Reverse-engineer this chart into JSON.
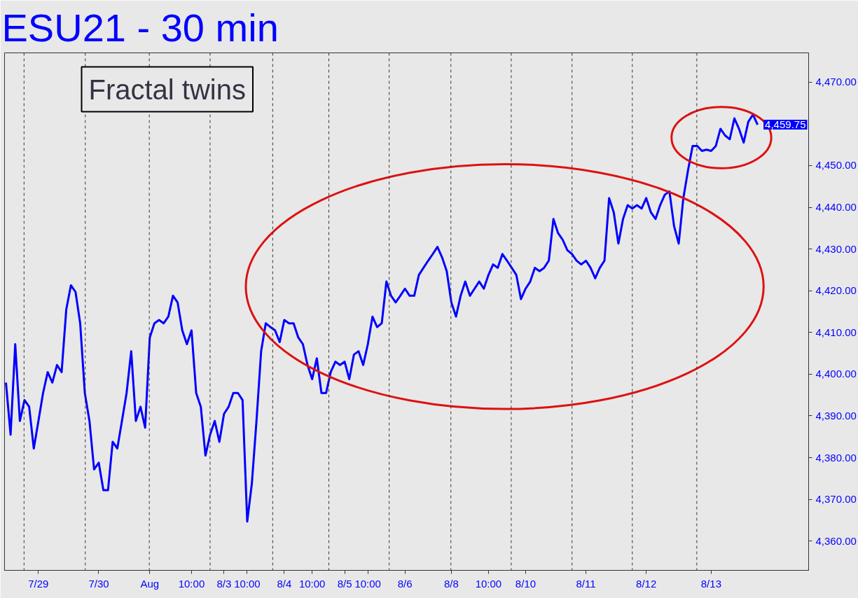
{
  "chart_data": {
    "type": "line",
    "title": "ESU21 - 30 min",
    "annotations": [
      "Fractal twins",
      "4,459.75"
    ],
    "categories": [
      null,
      null,
      null,
      null,
      null,
      null,
      null,
      "7/29",
      null,
      null,
      null,
      null,
      null,
      null,
      null,
      null,
      null,
      null,
      null,
      null,
      "7/30",
      null,
      null,
      null,
      null,
      null,
      null,
      null,
      null,
      null,
      null,
      "Aug",
      null,
      null,
      null,
      null,
      null,
      null,
      null,
      null,
      "10:00",
      null,
      null,
      null,
      null,
      null,
      null,
      "8/3",
      null,
      null,
      null,
      null,
      "10:00",
      null,
      null,
      null,
      null,
      null,
      null,
      null,
      "8/4",
      null,
      null,
      null,
      null,
      null,
      "10:00",
      null,
      null,
      null,
      null,
      null,
      null,
      "8/5",
      null,
      null,
      null,
      null,
      "10:00",
      null,
      null,
      null,
      null,
      null,
      null,
      null,
      "8/6",
      null,
      null,
      null,
      null,
      null,
      null,
      null,
      null,
      null,
      "8/8",
      null,
      null,
      null,
      null,
      null,
      null,
      null,
      "10:00",
      null,
      null,
      null,
      null,
      null,
      null,
      null,
      "8/10",
      null,
      null,
      null,
      null,
      null,
      null,
      null,
      null,
      null,
      null,
      null,
      null,
      "8/11",
      null,
      null,
      null,
      null,
      null,
      null,
      null,
      null,
      null,
      null,
      null,
      null,
      "8/12",
      null,
      null,
      null,
      null,
      null,
      null,
      null,
      null,
      null,
      null,
      null,
      null,
      null,
      "8/13",
      null,
      null,
      null,
      null,
      null,
      null,
      null,
      null,
      null,
      null
    ],
    "series": [
      {
        "color": "#0000ff",
        "values": [
          4398.0,
          4385.5,
          4407.2,
          4388.8,
          4393.8,
          4392.2,
          4382.2,
          4388.8,
          4395.5,
          4400.5,
          4398.0,
          4402.2,
          4400.5,
          4415.5,
          4421.3,
          4419.7,
          4412.2,
          4395.5,
          4388.8,
          4377.2,
          4378.8,
          4372.2,
          4372.2,
          4383.8,
          4382.2,
          4388.8,
          4395.5,
          4405.5,
          4388.8,
          4392.2,
          4387.2,
          4408.8,
          4412.2,
          4413.0,
          4412.2,
          4413.8,
          4418.8,
          4417.2,
          4410.5,
          4407.2,
          4410.5,
          4395.5,
          4392.2,
          4380.5,
          4385.5,
          4388.8,
          4383.8,
          4390.5,
          4392.2,
          4395.5,
          4395.5,
          4393.8,
          4364.7,
          4373.8,
          4388.8,
          4405.5,
          4412.2,
          4411.3,
          4410.5,
          4407.7,
          4413.0,
          4412.2,
          4412.2,
          4408.8,
          4407.2,
          4402.2,
          4398.8,
          4403.8,
          4395.5,
          4395.5,
          4400.5,
          4403.0,
          4402.2,
          4403.0,
          4398.8,
          4404.7,
          4405.5,
          4402.2,
          4407.2,
          4413.8,
          4411.3,
          4412.2,
          4422.2,
          4418.8,
          4417.2,
          4418.8,
          4420.5,
          4418.8,
          4418.8,
          4423.8,
          4425.5,
          4427.2,
          4428.8,
          4430.5,
          4428.0,
          4424.7,
          4417.2,
          4413.8,
          4418.8,
          4422.2,
          4418.8,
          4420.5,
          4422.2,
          4420.5,
          4423.8,
          4426.3,
          4425.5,
          4428.8,
          4427.2,
          4425.5,
          4423.8,
          4418.0,
          4420.5,
          4422.2,
          4425.5,
          4424.7,
          4425.5,
          4427.2,
          4437.2,
          4433.8,
          4432.2,
          4429.7,
          4428.8,
          4427.2,
          4426.3,
          4427.2,
          4425.5,
          4423.0,
          4425.5,
          4427.2,
          4442.2,
          4438.8,
          4431.3,
          4437.2,
          4440.5,
          4439.7,
          4440.5,
          4439.7,
          4442.2,
          4438.8,
          4437.2,
          4440.5,
          4443.0,
          4443.8,
          4435.5,
          4431.3,
          4442.2,
          4448.8,
          4454.7,
          4454.7,
          4453.5,
          4453.8,
          4453.5,
          4454.7,
          4458.8,
          4457.2,
          4456.3,
          4461.3,
          4458.8,
          4455.5,
          4460.5,
          4462.2,
          4459.8
        ]
      }
    ],
    "ylim": [
      4353,
      4477
    ],
    "yticks": [
      {
        "value": 4360,
        "label": "4,360.00"
      },
      {
        "value": 4370,
        "label": "4,370.00"
      },
      {
        "value": 4380,
        "label": "4,380.00"
      },
      {
        "value": 4390,
        "label": "4,390.00"
      },
      {
        "value": 4400,
        "label": "4,400.00"
      },
      {
        "value": 4410,
        "label": "4,410.00"
      },
      {
        "value": 4420,
        "label": "4,420.00"
      },
      {
        "value": 4430,
        "label": "4,430.00"
      },
      {
        "value": 4440,
        "label": "4,440.00"
      },
      {
        "value": 4450,
        "label": "4,450.00"
      },
      {
        "value": 4470,
        "label": "4,470.00"
      }
    ],
    "grid": false,
    "marker": "none",
    "line_style": "solid"
  }
}
